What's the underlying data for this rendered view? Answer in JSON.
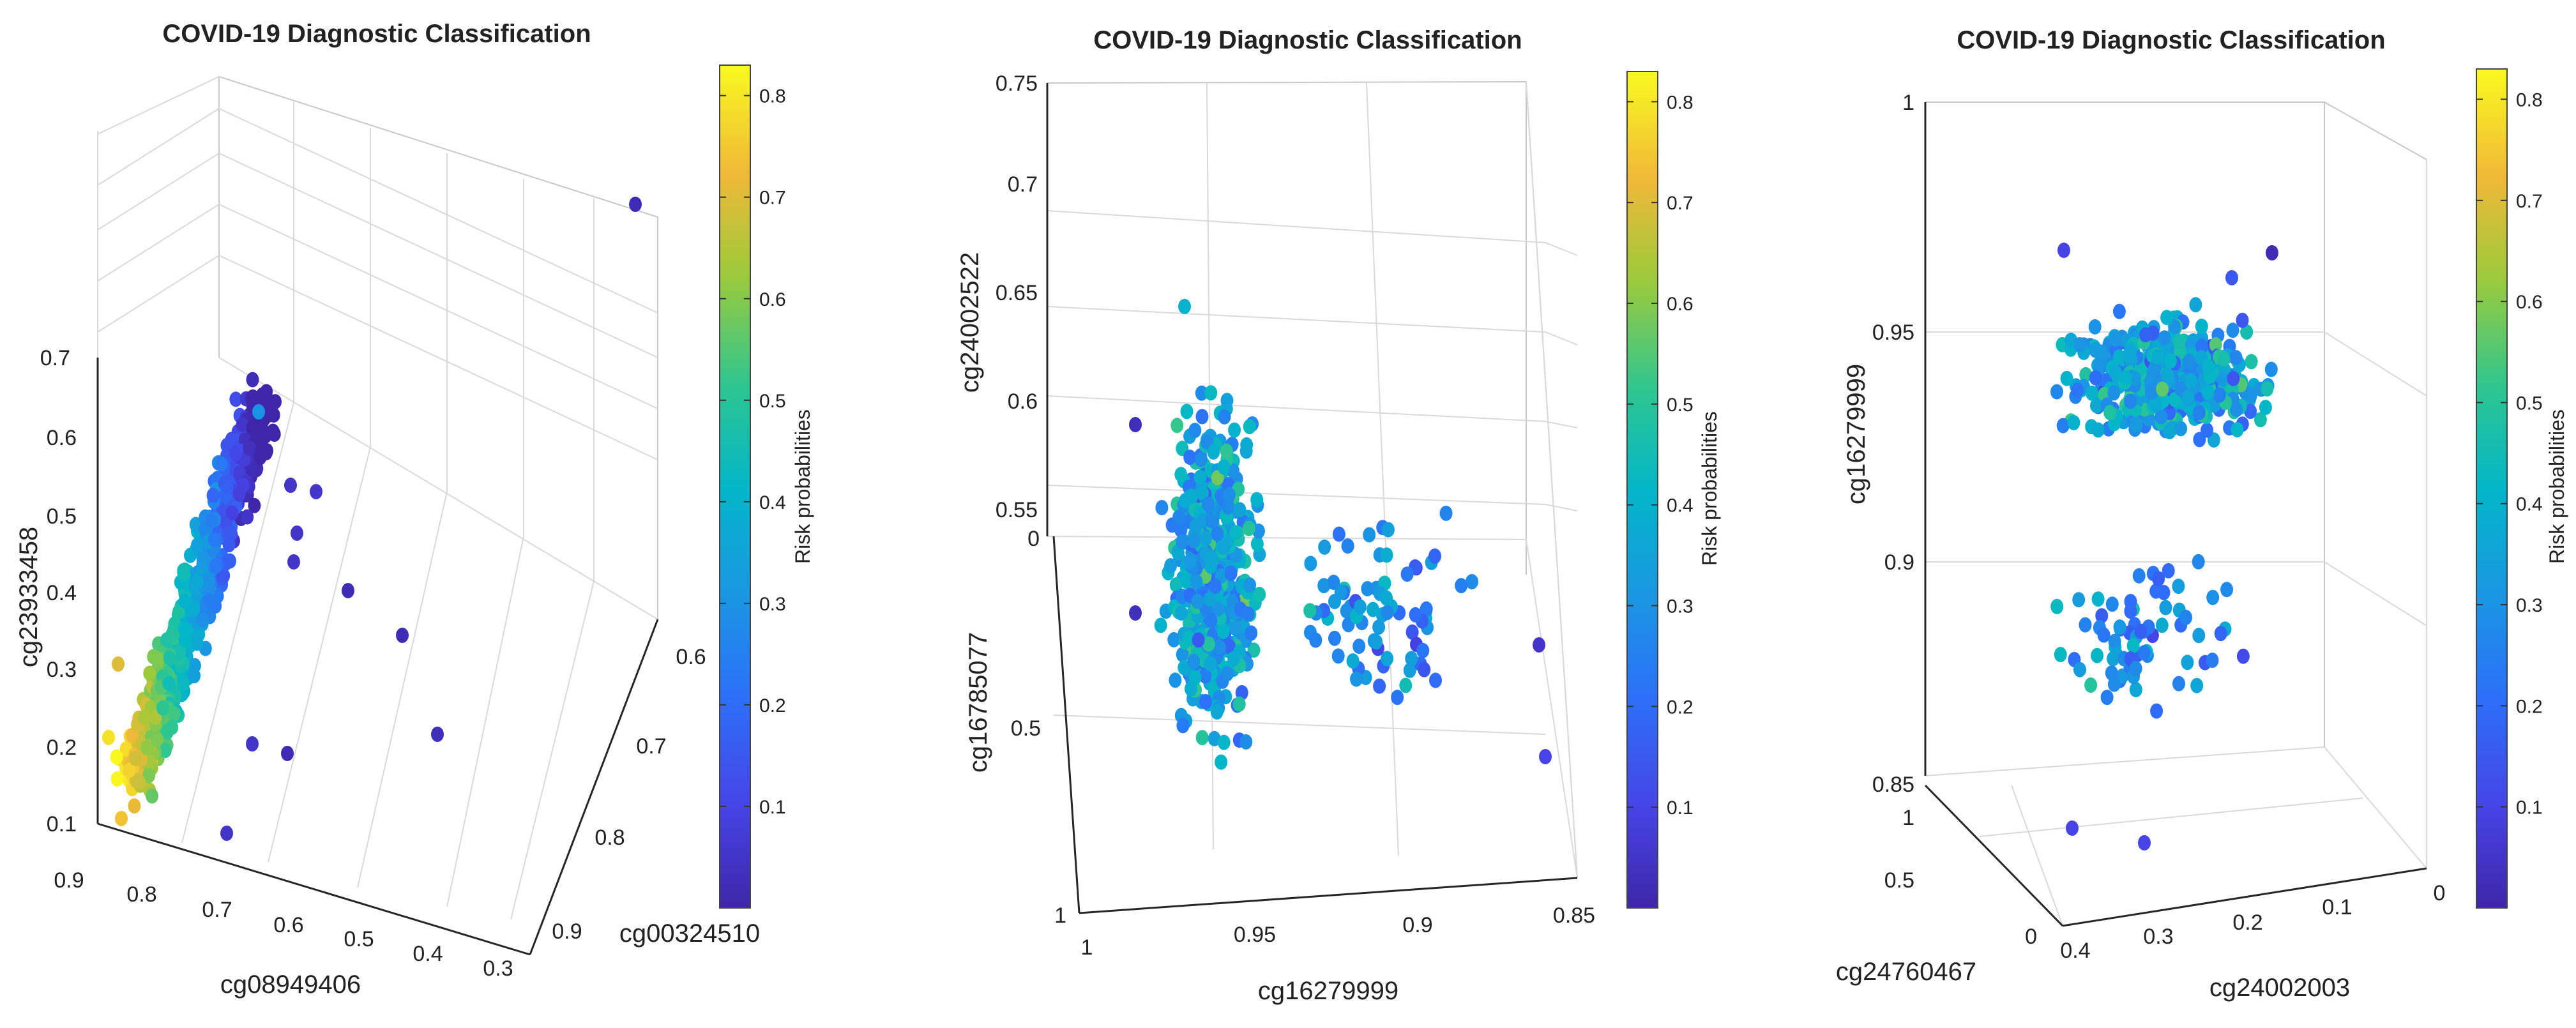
{
  "figure_title": "COVID-19 Diagnostic Classification",
  "chart_data": [
    {
      "type": "scatter3d",
      "title": "COVID-19 Diagnostic Classification",
      "xlabel": "cg08949406",
      "ylabel": "cg00324510",
      "zlabel": "cg23933458",
      "xticks": [
        "0.9",
        "0.8",
        "0.7",
        "0.6",
        "0.5",
        "0.4",
        "0.3"
      ],
      "yticks": [
        "0.6",
        "0.7",
        "0.8",
        "0.9"
      ],
      "zticks": [
        "0.1",
        "0.2",
        "0.3",
        "0.4",
        "0.5",
        "0.6",
        "0.7"
      ],
      "colorbar_label": "Risk probabilities",
      "colorbar_ticks": [
        "0.1",
        "0.2",
        "0.3",
        "0.4",
        "0.5",
        "0.6",
        "0.7",
        "0.8"
      ],
      "color_range": [
        0,
        0.83
      ]
    },
    {
      "type": "scatter3d",
      "title": "COVID-19 Diagnostic Classification",
      "xlabel": "cg16279999",
      "ylabel": "cg16785077",
      "zlabel": "cg24002522",
      "xticks": [
        "1",
        "0.95",
        "0.9",
        "0.85"
      ],
      "yticks": [
        "0",
        "0.5",
        "1"
      ],
      "zticks": [
        "0.55",
        "0.6",
        "0.65",
        "0.7",
        "0.75"
      ],
      "colorbar_label": "Risk probabilities",
      "colorbar_ticks": [
        "0.1",
        "0.2",
        "0.3",
        "0.4",
        "0.5",
        "0.6",
        "0.7",
        "0.8"
      ],
      "color_range": [
        0,
        0.83
      ]
    },
    {
      "type": "scatter3d",
      "title": "COVID-19 Diagnostic Classification",
      "xlabel": "cg24002003",
      "ylabel": "cg24760467",
      "zlabel": "cg16279999",
      "xticks": [
        "0.4",
        "0.3",
        "0.2",
        "0.1",
        "0"
      ],
      "yticks": [
        "0",
        "0.5",
        "1"
      ],
      "zticks": [
        "0.85",
        "0.9",
        "0.95",
        "1"
      ],
      "colorbar_label": "Risk probabilities",
      "colorbar_ticks": [
        "0.1",
        "0.2",
        "0.3",
        "0.4",
        "0.5",
        "0.6",
        "0.7",
        "0.8"
      ],
      "color_range": [
        0,
        0.83
      ]
    }
  ]
}
